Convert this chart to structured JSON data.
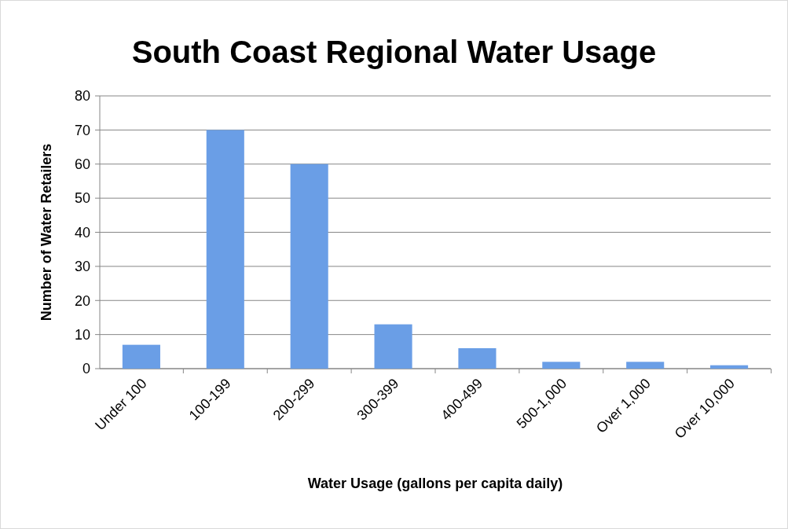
{
  "chart_data": {
    "type": "bar",
    "title": "South Coast Regional Water Usage",
    "xlabel": "Water Usage (gallons per capita daily)",
    "ylabel": "Number of Water Retailers",
    "categories": [
      "Under 100",
      "100-199",
      "200-299",
      "300-399",
      "400-499",
      "500-1,000",
      "Over 1,000",
      "Over 10,000"
    ],
    "values": [
      7,
      70,
      60,
      13,
      6,
      2,
      2,
      1
    ],
    "color": "#6a9ee6",
    "ylim": [
      0,
      80
    ],
    "yticks": [
      0,
      10,
      20,
      30,
      40,
      50,
      60,
      70,
      80
    ],
    "grid": "y"
  }
}
